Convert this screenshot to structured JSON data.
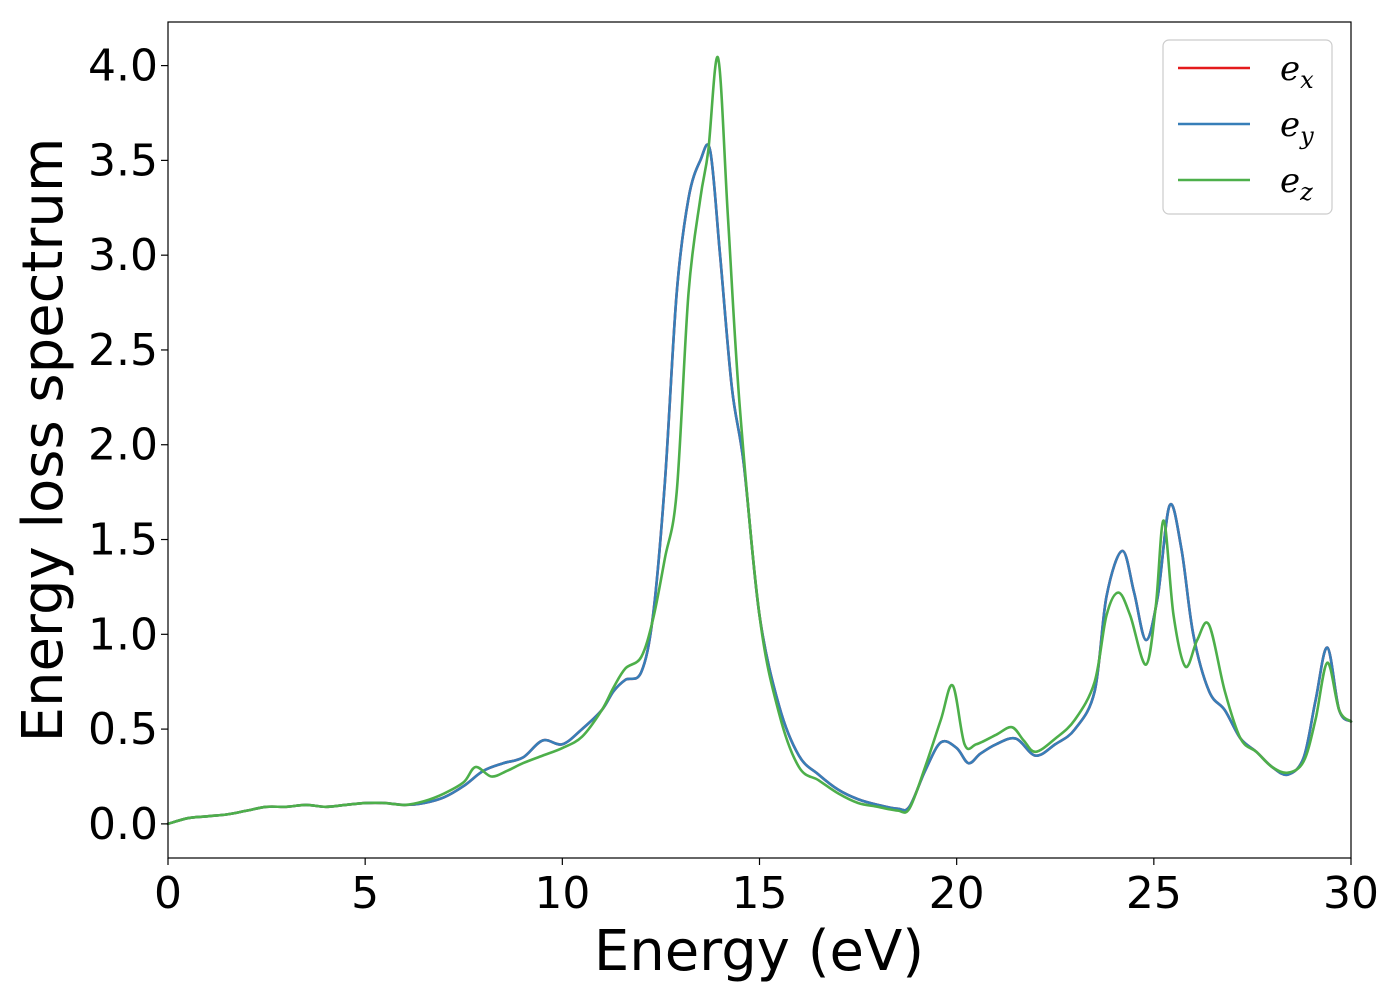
{
  "chart_data": {
    "type": "line",
    "title": "",
    "xlabel": "Energy (eV)",
    "ylabel": "Energy loss spectrum",
    "xlim": [
      0,
      30
    ],
    "ylim": [
      -0.18,
      4.23
    ],
    "xticks": [
      0,
      5,
      10,
      15,
      20,
      25,
      30
    ],
    "xtick_labels": [
      "0",
      "5",
      "10",
      "15",
      "20",
      "25",
      "30"
    ],
    "yticks": [
      0.0,
      0.5,
      1.0,
      1.5,
      2.0,
      2.5,
      3.0,
      3.5,
      4.0
    ],
    "ytick_labels": [
      "0.0",
      "0.5",
      "1.0",
      "1.5",
      "2.0",
      "2.5",
      "3.0",
      "3.5",
      "4.0"
    ],
    "grid": false,
    "legend_position": "top-right",
    "series": [
      {
        "name": "e_x",
        "legend_base": "e",
        "legend_sub": "x",
        "color": "#e41a1c",
        "x": [
          0,
          0.5,
          1,
          1.5,
          2,
          2.5,
          3,
          3.5,
          4,
          4.5,
          5,
          5.5,
          6,
          6.5,
          7,
          7.5,
          8,
          8.5,
          9,
          9.5,
          10,
          10.5,
          11,
          11.3,
          11.6,
          12,
          12.3,
          12.6,
          12.9,
          13.2,
          13.5,
          13.75,
          14,
          14.3,
          14.6,
          15,
          15.5,
          16,
          16.5,
          17,
          17.5,
          18,
          18.5,
          18.8,
          19.2,
          19.6,
          20,
          20.3,
          20.6,
          21,
          21.5,
          22,
          22.5,
          23,
          23.5,
          23.8,
          24.2,
          24.5,
          24.8,
          25.1,
          25.4,
          25.7,
          26,
          26.4,
          26.8,
          27.2,
          27.6,
          28,
          28.4,
          28.8,
          29.1,
          29.4,
          29.7,
          30
        ],
        "y": [
          0.0,
          0.03,
          0.04,
          0.05,
          0.07,
          0.09,
          0.09,
          0.1,
          0.09,
          0.1,
          0.11,
          0.11,
          0.1,
          0.11,
          0.14,
          0.2,
          0.28,
          0.32,
          0.35,
          0.44,
          0.42,
          0.5,
          0.6,
          0.7,
          0.76,
          0.8,
          1.1,
          1.8,
          2.8,
          3.3,
          3.5,
          3.55,
          3.0,
          2.3,
          1.9,
          1.1,
          0.62,
          0.36,
          0.26,
          0.18,
          0.13,
          0.1,
          0.08,
          0.09,
          0.28,
          0.43,
          0.4,
          0.32,
          0.37,
          0.42,
          0.45,
          0.36,
          0.42,
          0.5,
          0.7,
          1.2,
          1.44,
          1.22,
          0.97,
          1.2,
          1.68,
          1.45,
          1.0,
          0.7,
          0.6,
          0.45,
          0.38,
          0.3,
          0.26,
          0.35,
          0.65,
          0.93,
          0.6,
          0.54
        ]
      },
      {
        "name": "e_y",
        "legend_base": "e",
        "legend_sub": "y",
        "color": "#377eb8",
        "x": [
          0,
          0.5,
          1,
          1.5,
          2,
          2.5,
          3,
          3.5,
          4,
          4.5,
          5,
          5.5,
          6,
          6.5,
          7,
          7.5,
          8,
          8.5,
          9,
          9.5,
          10,
          10.5,
          11,
          11.3,
          11.6,
          12,
          12.3,
          12.6,
          12.9,
          13.2,
          13.5,
          13.75,
          14,
          14.3,
          14.6,
          15,
          15.5,
          16,
          16.5,
          17,
          17.5,
          18,
          18.5,
          18.8,
          19.2,
          19.6,
          20,
          20.3,
          20.6,
          21,
          21.5,
          22,
          22.5,
          23,
          23.5,
          23.8,
          24.2,
          24.5,
          24.8,
          25.1,
          25.4,
          25.7,
          26,
          26.4,
          26.8,
          27.2,
          27.6,
          28,
          28.4,
          28.8,
          29.1,
          29.4,
          29.7,
          30
        ],
        "y": [
          0.0,
          0.03,
          0.04,
          0.05,
          0.07,
          0.09,
          0.09,
          0.1,
          0.09,
          0.1,
          0.11,
          0.11,
          0.1,
          0.11,
          0.14,
          0.2,
          0.28,
          0.32,
          0.35,
          0.44,
          0.42,
          0.5,
          0.6,
          0.7,
          0.76,
          0.8,
          1.1,
          1.8,
          2.8,
          3.3,
          3.5,
          3.55,
          3.0,
          2.3,
          1.9,
          1.1,
          0.62,
          0.36,
          0.26,
          0.18,
          0.13,
          0.1,
          0.08,
          0.09,
          0.28,
          0.43,
          0.4,
          0.32,
          0.37,
          0.42,
          0.45,
          0.36,
          0.42,
          0.5,
          0.7,
          1.2,
          1.44,
          1.22,
          0.97,
          1.2,
          1.68,
          1.45,
          1.0,
          0.7,
          0.6,
          0.45,
          0.38,
          0.3,
          0.26,
          0.35,
          0.65,
          0.93,
          0.6,
          0.54
        ]
      },
      {
        "name": "e_z",
        "legend_base": "e",
        "legend_sub": "z",
        "color": "#4daf4a",
        "x": [
          0,
          0.5,
          1,
          1.5,
          2,
          2.5,
          3,
          3.5,
          4,
          4.5,
          5,
          5.5,
          6,
          6.5,
          7,
          7.5,
          7.8,
          8.2,
          8.6,
          9,
          9.5,
          10,
          10.5,
          11,
          11.3,
          11.6,
          12,
          12.3,
          12.6,
          12.9,
          13.2,
          13.5,
          13.7,
          13.95,
          14.2,
          14.5,
          15,
          15.5,
          16,
          16.5,
          17,
          17.5,
          18,
          18.5,
          18.8,
          19.2,
          19.6,
          19.9,
          20.2,
          20.5,
          21,
          21.4,
          21.7,
          22,
          22.5,
          23,
          23.5,
          23.8,
          24.1,
          24.4,
          24.8,
          25.05,
          25.25,
          25.5,
          25.8,
          26.1,
          26.4,
          26.8,
          27.2,
          27.6,
          28,
          28.4,
          28.8,
          29.1,
          29.4,
          29.7,
          30
        ],
        "y": [
          0.0,
          0.03,
          0.04,
          0.05,
          0.07,
          0.09,
          0.09,
          0.1,
          0.09,
          0.1,
          0.11,
          0.11,
          0.1,
          0.12,
          0.16,
          0.22,
          0.3,
          0.25,
          0.28,
          0.32,
          0.36,
          0.4,
          0.46,
          0.6,
          0.72,
          0.82,
          0.88,
          1.08,
          1.4,
          1.75,
          2.8,
          3.3,
          3.55,
          4.04,
          3.2,
          2.2,
          1.1,
          0.58,
          0.3,
          0.23,
          0.16,
          0.11,
          0.09,
          0.07,
          0.08,
          0.3,
          0.55,
          0.73,
          0.42,
          0.42,
          0.47,
          0.51,
          0.44,
          0.38,
          0.45,
          0.55,
          0.75,
          1.1,
          1.22,
          1.1,
          0.84,
          1.15,
          1.6,
          1.1,
          0.83,
          0.97,
          1.05,
          0.7,
          0.45,
          0.38,
          0.3,
          0.27,
          0.33,
          0.55,
          0.85,
          0.6,
          0.54
        ]
      }
    ]
  }
}
